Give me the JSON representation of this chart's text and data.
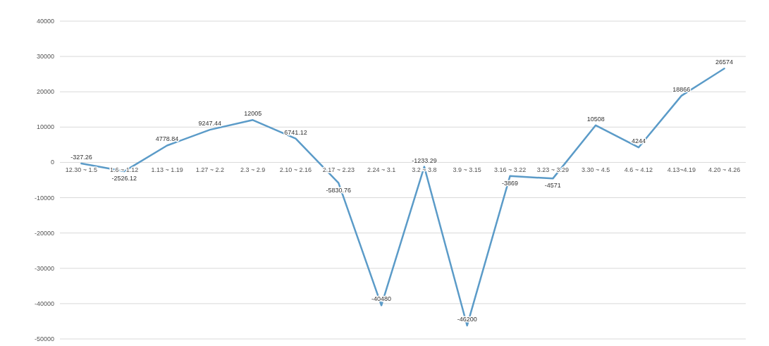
{
  "chart_data": {
    "type": "line",
    "categories": [
      "12.30 ~ 1.5",
      "1.6 ~ 1.12",
      "1.13 ~ 1.19",
      "1.27 ~ 2.2",
      "2.3 ~ 2.9",
      "2.10 ~ 2.16",
      "2.17 ~ 2.23",
      "2.24 ~ 3.1",
      "3.2 ~ 3.8",
      "3.9 ~ 3.15",
      "3.16 ~ 3.22",
      "3.23 ~ 3.29",
      "3.30 ~ 4.5",
      "4.6 ~ 4.12",
      "4.13~4.19",
      "4.20 ~ 4.26"
    ],
    "series": [
      {
        "color": "#5b9bc8",
        "values": [
          -327.26,
          -2526.12,
          4778.84,
          9247.44,
          12005,
          6741.12,
          -5830.76,
          -40480,
          -1233.29,
          -46200,
          -3869,
          -4571,
          10508,
          4244,
          18866,
          26574
        ]
      }
    ],
    "ylim": [
      -50000,
      40000
    ],
    "yticks": [
      -50000,
      -40000,
      -30000,
      -20000,
      -10000,
      0,
      10000,
      20000,
      30000,
      40000
    ],
    "grid": "y",
    "data_labels": true,
    "marker": "none",
    "line_style": "solid"
  }
}
